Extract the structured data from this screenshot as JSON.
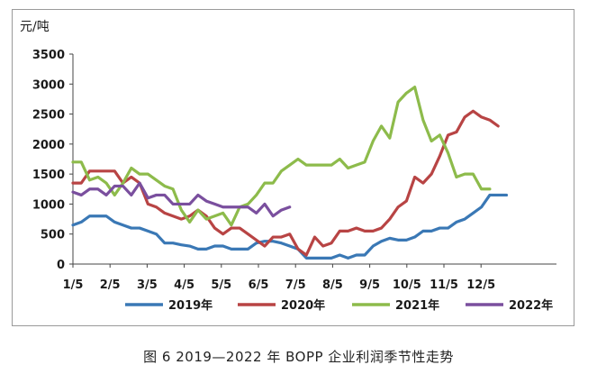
{
  "caption": "图 6   2019—2022 年 BOPP 企业利润季节性走势",
  "chart_data": {
    "type": "line",
    "title": "",
    "ylabel": "元/吨",
    "xlabel": "",
    "ylim": [
      0,
      3500
    ],
    "yticks": [
      0,
      500,
      1000,
      1500,
      2000,
      2500,
      3000,
      3500
    ],
    "xtick_labels": [
      "1/5",
      "2/5",
      "3/5",
      "4/5",
      "5/5",
      "6/5",
      "7/5",
      "8/5",
      "9/5",
      "10/5",
      "11/5",
      "12/5"
    ],
    "x_range": [
      0,
      58
    ],
    "grid": "none",
    "legend": "bottom",
    "series": [
      {
        "name": "2019年",
        "color": "#3a78b5",
        "values": [
          650,
          700,
          800,
          800,
          800,
          700,
          650,
          600,
          600,
          550,
          500,
          350,
          350,
          320,
          300,
          250,
          250,
          300,
          300,
          250,
          250,
          250,
          350,
          380,
          380,
          350,
          300,
          250,
          100,
          100,
          100,
          100,
          150,
          100,
          150,
          150,
          300,
          380,
          430,
          400,
          400,
          450,
          550,
          550,
          600,
          600,
          700,
          750,
          850,
          950,
          1150,
          1150,
          1150
        ]
      },
      {
        "name": "2020年",
        "color": "#b84444",
        "values": [
          1350,
          1350,
          1550,
          1550,
          1550,
          1550,
          1350,
          1450,
          1350,
          1000,
          950,
          850,
          800,
          750,
          800,
          900,
          800,
          600,
          500,
          600,
          600,
          500,
          400,
          300,
          450,
          450,
          500,
          250,
          150,
          450,
          300,
          350,
          550,
          550,
          600,
          550,
          550,
          600,
          750,
          950,
          1050,
          1450,
          1350,
          1500,
          1800,
          2150,
          2200,
          2450,
          2550,
          2450,
          2400,
          2300
        ]
      },
      {
        "name": "2021年",
        "color": "#8dbb4b",
        "values": [
          1700,
          1700,
          1400,
          1450,
          1350,
          1150,
          1350,
          1600,
          1500,
          1500,
          1400,
          1300,
          1250,
          900,
          700,
          900,
          750,
          800,
          850,
          650,
          950,
          1000,
          1150,
          1350,
          1350,
          1550,
          1650,
          1750,
          1650,
          1650,
          1650,
          1650,
          1750,
          1600,
          1650,
          1700,
          2050,
          2300,
          2100,
          2700,
          2850,
          2950,
          2400,
          2050,
          2150,
          1850,
          1450,
          1500,
          1500,
          1250,
          1250
        ]
      },
      {
        "name": "2022年",
        "color": "#7a4f9e",
        "values": [
          1200,
          1150,
          1250,
          1250,
          1150,
          1300,
          1300,
          1150,
          1350,
          1100,
          1150,
          1150,
          1000,
          1000,
          1000,
          1150,
          1050,
          1000,
          950,
          950,
          950,
          950,
          850,
          1000,
          800,
          900,
          950
        ]
      }
    ]
  }
}
